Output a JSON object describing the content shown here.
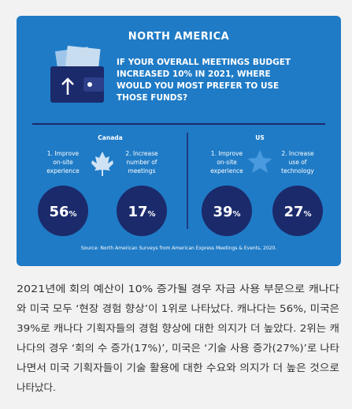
{
  "panel": {
    "title": "NORTH AMERICA",
    "question": [
      "IF YOUR OVERALL MEETINGS BUDGET",
      "INCREASED 10% IN 2021, WHERE",
      "WOULD YOU MOST PREFER TO USE",
      "THOSE FUNDS?"
    ],
    "regions": [
      {
        "name": "Canada",
        "items": [
          {
            "label": [
              "1. Improve",
              "on-site",
              "experience"
            ],
            "value": "56",
            "unit": "%"
          },
          {
            "label": [
              "2. Increase",
              "number of",
              "meetings"
            ],
            "value": "17",
            "unit": "%"
          }
        ]
      },
      {
        "name": "US",
        "items": [
          {
            "label": [
              "1. Improve",
              "on-site",
              "experience"
            ],
            "value": "39",
            "unit": "%"
          },
          {
            "label": [
              "2. Increase",
              "use of",
              "technology"
            ],
            "value": "27",
            "unit": "%"
          }
        ]
      }
    ],
    "source": "Source: North American Surveys from American Express Meetings & Events, 2020."
  },
  "body": {
    "lines": [
      "2021년에 회의 예산이 10% 증가될 경우 자금 사용 부문으로 캐나다",
      "와 미국 모두 ‘현장 경험 향상’이 1위로 나타났다. 캐나다는 56%, 미국은",
      "39%로 캐나다 기획자들의 경험 향상에 대한 의지가 더 높았다. 2위는 캐",
      "나다의 경우 ‘회의 수 증가(17%)’, 미국은 ‘기술 사용 증가(27%)’로 나타",
      "나면서 미국 기획자들이 기술 활용에 대한 수요와 의지가 더 높은 것으로",
      "나타났다."
    ]
  }
}
